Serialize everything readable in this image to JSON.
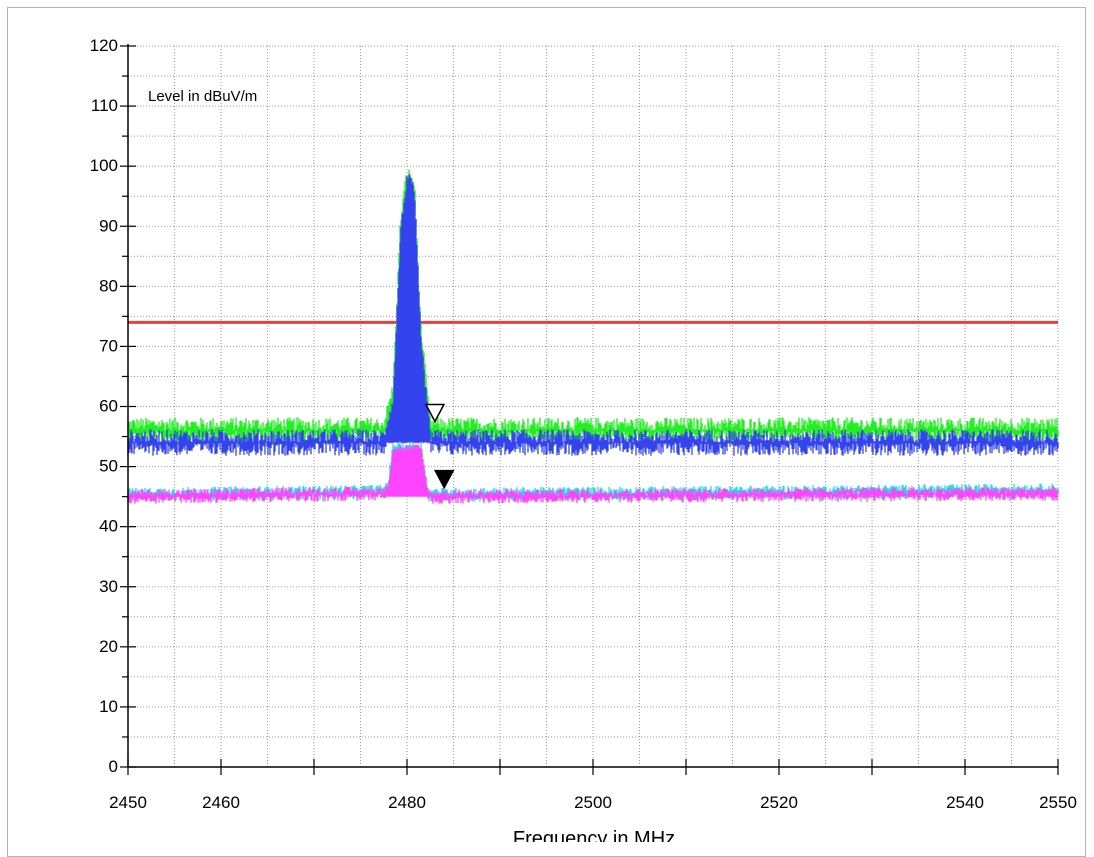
{
  "chart_data": {
    "type": "line",
    "title": "",
    "ylabel": "Level in dBuV/m",
    "xlabel": "Frequency in MHz",
    "xlim": [
      2450,
      2550
    ],
    "ylim": [
      0,
      120
    ],
    "x_ticks": [
      2450,
      2460,
      2480,
      2500,
      2520,
      2540,
      2550
    ],
    "y_ticks": [
      0,
      10,
      20,
      30,
      40,
      50,
      60,
      70,
      80,
      90,
      100,
      110,
      120
    ],
    "grid": true,
    "limit_lines": [
      {
        "name": "",
        "color": "#e84040",
        "y": 74
      },
      {
        "name": "",
        "color": "#ff44ff",
        "y": 54,
        "style": "dash-dot"
      }
    ],
    "series": [
      {
        "name": "",
        "color": "#22ee22",
        "kind": "peak",
        "x": [
          2450,
          2477.5,
          2478.5,
          2479.3,
          2480,
          2480.8,
          2481.5,
          2482.5,
          2550
        ],
        "y": [
          56,
          56,
          62,
          90,
          98,
          96,
          72,
          56,
          56
        ]
      },
      {
        "name": "",
        "color": "#3344ee",
        "kind": "peak",
        "x": [
          2450,
          2477.5,
          2478.5,
          2479.3,
          2480,
          2480.8,
          2481.5,
          2482.5,
          2550
        ],
        "y": [
          54,
          54,
          60,
          88,
          97,
          95,
          70,
          54,
          54
        ]
      },
      {
        "name": "",
        "color": "#22dddd",
        "kind": "average",
        "x": [
          2450,
          2477.5,
          2478,
          2478.5,
          2481.5,
          2482.3,
          2550
        ],
        "y": [
          45.3,
          45.8,
          47,
          53,
          53,
          45.3,
          46
        ]
      },
      {
        "name": "",
        "color": "#ff44ff",
        "kind": "average",
        "x": [
          2450,
          2477.5,
          2478,
          2478.5,
          2481.5,
          2482.3,
          2550
        ],
        "y": [
          45,
          45.5,
          46.5,
          52.5,
          52.5,
          45,
          45.5
        ]
      }
    ],
    "markers": [
      {
        "x": 2483,
        "y": 59,
        "style": "hollow"
      },
      {
        "x": 2484,
        "y": 48,
        "style": "filled"
      }
    ]
  }
}
